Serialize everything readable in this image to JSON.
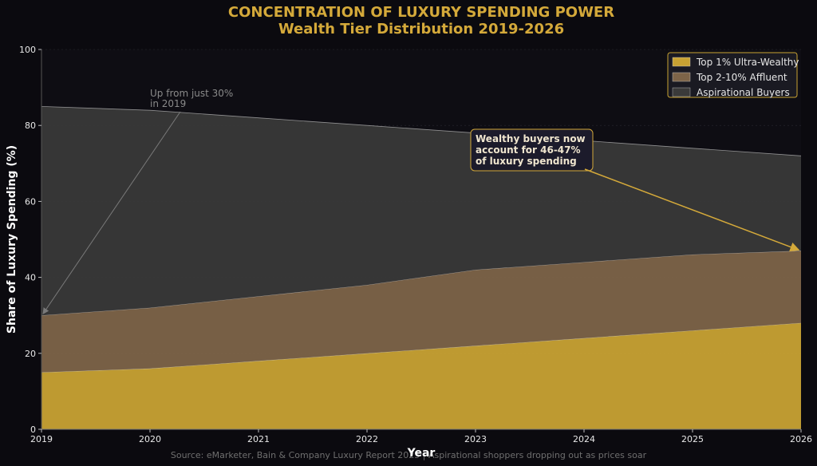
{
  "colors": {
    "background": "#0b0a0f",
    "title": "#d4a93a",
    "top1": "#c8a233",
    "affluent": "#7d6448",
    "aspirational": "#3a3a3a",
    "accent_arrow": "#d4a93a",
    "muted_arrow": "#7a7a7a",
    "annotation_box": "#1c1b2b"
  },
  "chart_data": {
    "type": "area",
    "title": "CONCENTRATION OF LUXURY SPENDING POWER",
    "subtitle": "Wealth Tier Distribution 2019-2026",
    "xlabel": "Year",
    "ylabel": "Share of Luxury Spending (%)",
    "stacked": true,
    "grid": true,
    "legend_position": "top-right",
    "x": [
      2019,
      2020,
      2021,
      2022,
      2023,
      2024,
      2025,
      2026
    ],
    "xlim": [
      2019,
      2026
    ],
    "ylim": [
      0,
      100
    ],
    "x_ticks": [
      "2019",
      "2020",
      "2021",
      "2022",
      "2023",
      "2024",
      "2025",
      "2026"
    ],
    "y_ticks": [
      "0",
      "20",
      "40",
      "60",
      "80",
      "100"
    ],
    "series": [
      {
        "name": "Top 1% Ultra-Wealthy",
        "color": "#c8a233",
        "values": [
          15,
          16,
          18,
          20,
          22,
          24,
          26,
          28
        ]
      },
      {
        "name": "Top 2-10% Affluent",
        "color": "#7d6448",
        "values": [
          15,
          16,
          17,
          18,
          20,
          20,
          20,
          19
        ]
      },
      {
        "name": "Aspirational Buyers",
        "color": "#3a3a3a",
        "values": [
          55,
          52,
          47,
          42,
          36,
          32,
          28,
          25
        ]
      }
    ],
    "annotations": [
      {
        "lines": [
          "Up from just 30%",
          "in 2019"
        ],
        "target": {
          "x": 2019,
          "y": 30
        }
      },
      {
        "lines": [
          "Wealthy buyers now",
          "account for 46-47%",
          "of luxury spending"
        ],
        "target": {
          "x": 2026,
          "y": 47
        }
      }
    ],
    "source": "Source: eMarketer, Bain & Company Luxury Report 2025 | Aspirational shoppers dropping out as prices soar"
  }
}
